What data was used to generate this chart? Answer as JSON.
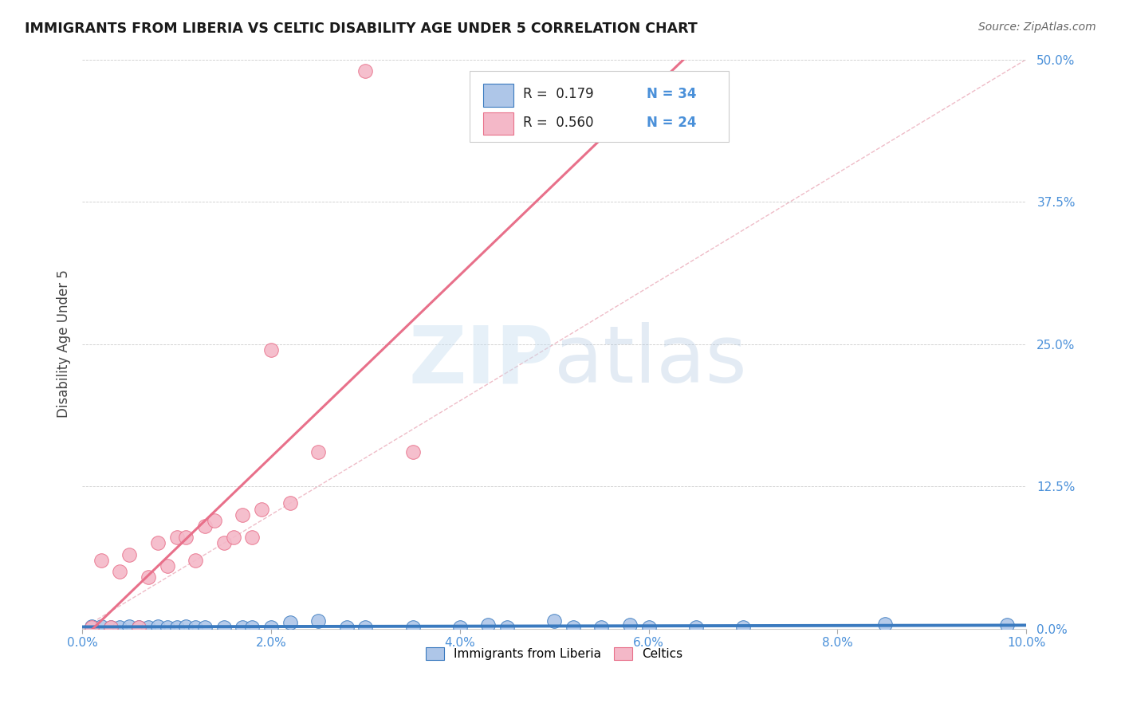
{
  "title": "IMMIGRANTS FROM LIBERIA VS CELTIC DISABILITY AGE UNDER 5 CORRELATION CHART",
  "source": "Source: ZipAtlas.com",
  "ylabel": "Disability Age Under 5",
  "xlim": [
    0.0,
    0.1
  ],
  "ylim": [
    0.0,
    0.5
  ],
  "xticks": [
    0.0,
    0.02,
    0.04,
    0.06,
    0.08,
    0.1
  ],
  "yticks": [
    0.0,
    0.125,
    0.25,
    0.375,
    0.5
  ],
  "ytick_labels": [
    "0.0%",
    "12.5%",
    "25.0%",
    "37.5%",
    "50.0%"
  ],
  "xtick_labels": [
    "0.0%",
    "2.0%",
    "4.0%",
    "6.0%",
    "8.0%",
    "10.0%"
  ],
  "legend_r1": "R =  0.179",
  "legend_n1": "N = 34",
  "legend_r2": "R =  0.560",
  "legend_n2": "N = 24",
  "color_liberia": "#aec6e8",
  "color_celtics": "#f4b8c8",
  "color_liberia_line": "#3a7abf",
  "color_celtics_line": "#e8708a",
  "color_trend_dashed": "#e8a0b0",
  "background_color": "#ffffff",
  "liberia_points": [
    [
      0.001,
      0.002
    ],
    [
      0.002,
      0.002
    ],
    [
      0.003,
      0.001
    ],
    [
      0.004,
      0.001
    ],
    [
      0.005,
      0.002
    ],
    [
      0.006,
      0.001
    ],
    [
      0.007,
      0.001
    ],
    [
      0.008,
      0.002
    ],
    [
      0.009,
      0.001
    ],
    [
      0.01,
      0.001
    ],
    [
      0.011,
      0.002
    ],
    [
      0.012,
      0.001
    ],
    [
      0.013,
      0.001
    ],
    [
      0.015,
      0.001
    ],
    [
      0.017,
      0.001
    ],
    [
      0.018,
      0.001
    ],
    [
      0.02,
      0.001
    ],
    [
      0.022,
      0.005
    ],
    [
      0.025,
      0.007
    ],
    [
      0.028,
      0.001
    ],
    [
      0.03,
      0.001
    ],
    [
      0.035,
      0.001
    ],
    [
      0.04,
      0.001
    ],
    [
      0.043,
      0.003
    ],
    [
      0.045,
      0.001
    ],
    [
      0.05,
      0.007
    ],
    [
      0.052,
      0.001
    ],
    [
      0.055,
      0.001
    ],
    [
      0.058,
      0.003
    ],
    [
      0.06,
      0.001
    ],
    [
      0.065,
      0.001
    ],
    [
      0.07,
      0.001
    ],
    [
      0.085,
      0.004
    ],
    [
      0.098,
      0.003
    ]
  ],
  "celtics_points": [
    [
      0.001,
      0.001
    ],
    [
      0.002,
      0.06
    ],
    [
      0.003,
      0.001
    ],
    [
      0.004,
      0.05
    ],
    [
      0.005,
      0.065
    ],
    [
      0.006,
      0.001
    ],
    [
      0.007,
      0.045
    ],
    [
      0.008,
      0.075
    ],
    [
      0.009,
      0.055
    ],
    [
      0.01,
      0.08
    ],
    [
      0.011,
      0.08
    ],
    [
      0.012,
      0.06
    ],
    [
      0.013,
      0.09
    ],
    [
      0.014,
      0.095
    ],
    [
      0.015,
      0.075
    ],
    [
      0.016,
      0.08
    ],
    [
      0.017,
      0.1
    ],
    [
      0.018,
      0.08
    ],
    [
      0.019,
      0.105
    ],
    [
      0.02,
      0.245
    ],
    [
      0.022,
      0.11
    ],
    [
      0.025,
      0.155
    ],
    [
      0.03,
      0.49
    ],
    [
      0.035,
      0.155
    ]
  ]
}
